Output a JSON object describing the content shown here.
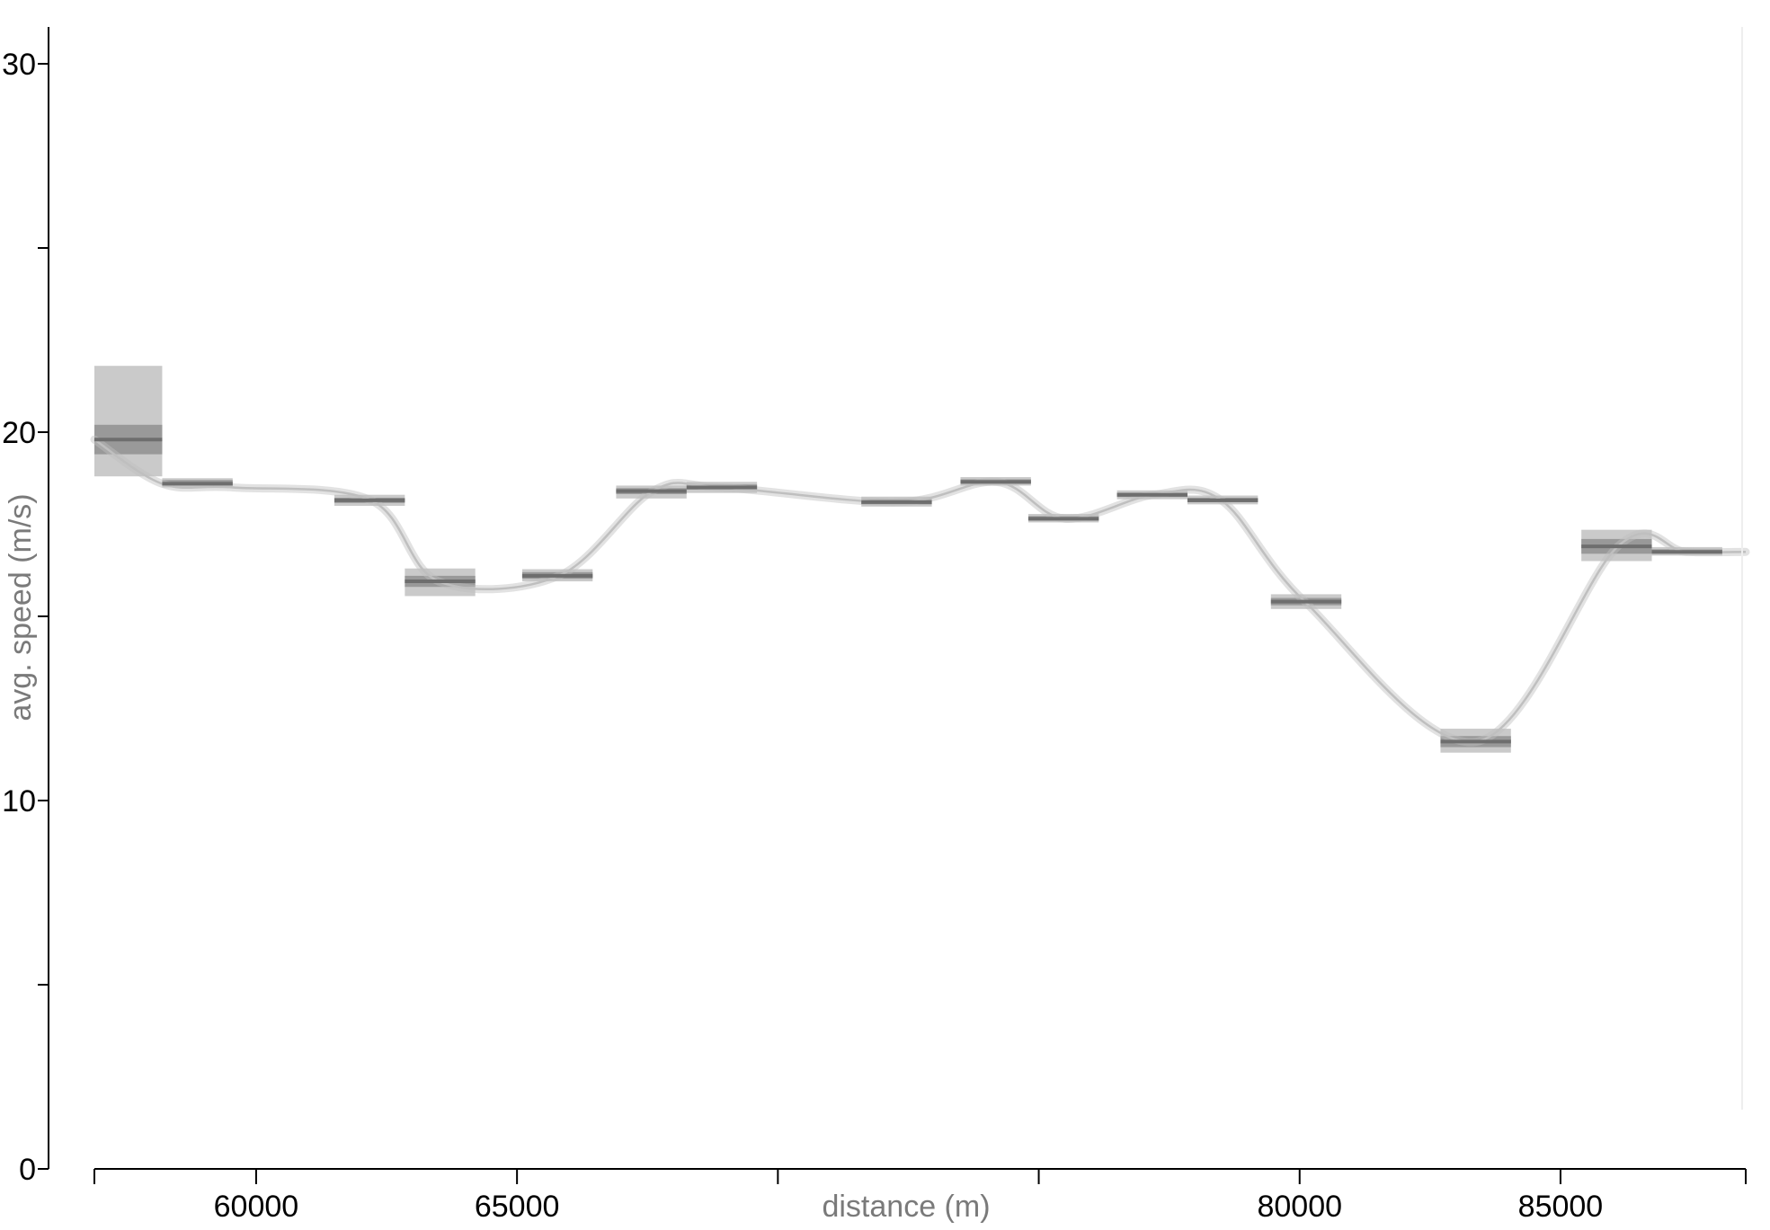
{
  "chart_data": {
    "type": "line",
    "xlabel": "distance (m)",
    "ylabel": "avg. speed (m/s)",
    "xlim": [
      56200,
      87850
    ],
    "ylim": [
      0,
      30.9
    ],
    "x_ticks": [
      56200,
      59300,
      64300,
      69300,
      74300,
      79300,
      84300,
      87850
    ],
    "x_tick_labels": [
      {
        "label": "60000",
        "x": 59300
      },
      {
        "label": "65000",
        "x": 64300
      },
      {
        "label": "80000",
        "x": 79300
      },
      {
        "label": "85000",
        "x": 84300
      }
    ],
    "y_ticks": [
      0,
      5,
      10,
      15,
      20,
      25,
      30
    ],
    "y_tick_labels": [
      "0",
      "10",
      "20",
      "30"
    ],
    "segments": [
      {
        "x0": 56200,
        "x1": 57500,
        "mean": 19.8,
        "inner": [
          19.4,
          20.2
        ],
        "outer": [
          18.8,
          21.8
        ]
      },
      {
        "x0": 57500,
        "x1": 58850,
        "mean": 18.6,
        "inner": [
          18.55,
          18.7
        ],
        "outer": [
          18.5,
          18.75
        ]
      },
      {
        "x0": 60800,
        "x1": 62150,
        "mean": 18.15,
        "inner": [
          18.08,
          18.22
        ],
        "outer": [
          18.0,
          18.3
        ]
      },
      {
        "x0": 62150,
        "x1": 63500,
        "mean": 15.95,
        "inner": [
          15.8,
          16.1
        ],
        "outer": [
          15.55,
          16.3
        ]
      },
      {
        "x0": 64400,
        "x1": 65750,
        "mean": 16.1,
        "inner": [
          16.02,
          16.2
        ],
        "outer": [
          15.95,
          16.28
        ]
      },
      {
        "x0": 66200,
        "x1": 67550,
        "mean": 18.4,
        "inner": [
          18.32,
          18.48
        ],
        "outer": [
          18.2,
          18.55
        ]
      },
      {
        "x0": 67550,
        "x1": 68900,
        "mean": 18.5,
        "inner": [
          18.44,
          18.58
        ],
        "outer": [
          18.35,
          18.65
        ]
      },
      {
        "x0": 70900,
        "x1": 72250,
        "mean": 18.1,
        "inner": [
          18.04,
          18.18
        ],
        "outer": [
          17.98,
          18.25
        ]
      },
      {
        "x0": 72800,
        "x1": 74150,
        "mean": 18.65,
        "inner": [
          18.6,
          18.72
        ],
        "outer": [
          18.55,
          18.78
        ]
      },
      {
        "x0": 74100,
        "x1": 75450,
        "mean": 17.65,
        "inner": [
          17.6,
          17.72
        ],
        "outer": [
          17.55,
          17.78
        ]
      },
      {
        "x0": 75800,
        "x1": 77150,
        "mean": 18.3,
        "inner": [
          18.24,
          18.36
        ],
        "outer": [
          18.18,
          18.42
        ]
      },
      {
        "x0": 77150,
        "x1": 78500,
        "mean": 18.15,
        "inner": [
          18.1,
          18.22
        ],
        "outer": [
          18.04,
          18.28
        ]
      },
      {
        "x0": 78750,
        "x1": 80100,
        "mean": 15.4,
        "inner": [
          15.3,
          15.5
        ],
        "outer": [
          15.2,
          15.6
        ]
      },
      {
        "x0": 82000,
        "x1": 83350,
        "mean": 11.6,
        "inner": [
          11.45,
          11.75
        ],
        "outer": [
          11.3,
          11.95
        ]
      },
      {
        "x0": 84700,
        "x1": 86050,
        "mean": 16.9,
        "inner": [
          16.7,
          17.1
        ],
        "outer": [
          16.5,
          17.35
        ]
      },
      {
        "x0": 86050,
        "x1": 87400,
        "mean": 16.75,
        "inner": [
          16.7,
          16.82
        ],
        "outer": [
          16.65,
          16.88
        ]
      }
    ],
    "curve": [
      [
        56200,
        19.8
      ],
      [
        57500,
        18.6
      ],
      [
        58850,
        18.5
      ],
      [
        61500,
        18.15
      ],
      [
        62800,
        15.95
      ],
      [
        65100,
        16.1
      ],
      [
        66900,
        18.4
      ],
      [
        68200,
        18.5
      ],
      [
        71600,
        18.1
      ],
      [
        73500,
        18.65
      ],
      [
        74800,
        17.65
      ],
      [
        76500,
        18.3
      ],
      [
        77800,
        18.15
      ],
      [
        79400,
        15.4
      ],
      [
        82700,
        11.6
      ],
      [
        85400,
        16.9
      ],
      [
        86700,
        16.75
      ],
      [
        87850,
        16.75
      ]
    ],
    "colors": {
      "axis": "#000000",
      "tick_label": "#000000",
      "axis_label": "#7a7a7a",
      "mean_bar": "#6e6e6e",
      "inner_band": "#8c8c8c",
      "outer_band": "#b8b8b8",
      "curve": "#bfbfbf"
    },
    "grid": false,
    "legend": "none"
  }
}
